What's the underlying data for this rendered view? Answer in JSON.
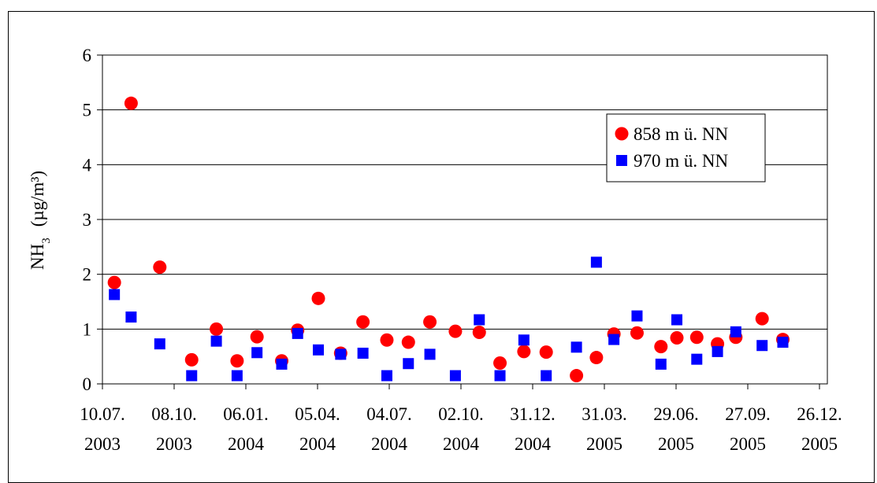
{
  "chart_data": {
    "type": "scatter",
    "title": "",
    "xlabel": "",
    "ylabel": {
      "main": "NH",
      "sub": "3",
      "unit": "(µg/m³)"
    },
    "ylim": [
      0,
      6
    ],
    "yticks": [
      "0",
      "1",
      "2",
      "3",
      "4",
      "5",
      "6"
    ],
    "xlim": [
      "2003-07-10",
      "2005-12-26"
    ],
    "xticks": [
      {
        "date": "2003-07-10",
        "line1": "10.07.",
        "line2": "2003"
      },
      {
        "date": "2003-10-08",
        "line1": "08.10.",
        "line2": "2003"
      },
      {
        "date": "2004-01-06",
        "line1": "06.01.",
        "line2": "2004"
      },
      {
        "date": "2004-04-05",
        "line1": "05.04.",
        "line2": "2004"
      },
      {
        "date": "2004-07-04",
        "line1": "04.07.",
        "line2": "2004"
      },
      {
        "date": "2004-10-02",
        "line1": "02.10.",
        "line2": "2004"
      },
      {
        "date": "2004-12-31",
        "line1": "31.12.",
        "line2": "2004"
      },
      {
        "date": "2005-03-31",
        "line1": "31.03.",
        "line2": "2005"
      },
      {
        "date": "2005-06-29",
        "line1": "29.06.",
        "line2": "2005"
      },
      {
        "date": "2005-09-27",
        "line1": "27.09.",
        "line2": "2005"
      },
      {
        "date": "2005-12-26",
        "line1": "26.12.",
        "line2": "2005"
      }
    ],
    "grid": "horizontal",
    "legend_position": "top-right",
    "series": [
      {
        "name": "858 m ü. NN",
        "marker": "circle",
        "color": "#ff0000",
        "points": [
          {
            "x": "2003-07-25",
            "y": 1.85
          },
          {
            "x": "2003-08-15",
            "y": 5.12
          },
          {
            "x": "2003-09-20",
            "y": 2.13
          },
          {
            "x": "2003-10-30",
            "y": 0.44
          },
          {
            "x": "2003-11-30",
            "y": 1.0
          },
          {
            "x": "2003-12-26",
            "y": 0.42
          },
          {
            "x": "2004-01-20",
            "y": 0.86
          },
          {
            "x": "2004-02-20",
            "y": 0.42
          },
          {
            "x": "2004-03-11",
            "y": 0.98
          },
          {
            "x": "2004-04-06",
            "y": 1.56
          },
          {
            "x": "2004-05-04",
            "y": 0.56
          },
          {
            "x": "2004-06-01",
            "y": 1.13
          },
          {
            "x": "2004-07-01",
            "y": 0.8
          },
          {
            "x": "2004-07-28",
            "y": 0.76
          },
          {
            "x": "2004-08-24",
            "y": 1.13
          },
          {
            "x": "2004-09-25",
            "y": 0.96
          },
          {
            "x": "2004-10-25",
            "y": 0.94
          },
          {
            "x": "2004-11-20",
            "y": 0.38
          },
          {
            "x": "2004-12-20",
            "y": 0.59
          },
          {
            "x": "2005-01-17",
            "y": 0.58
          },
          {
            "x": "2005-02-24",
            "y": 0.15
          },
          {
            "x": "2005-03-21",
            "y": 0.48
          },
          {
            "x": "2005-04-12",
            "y": 0.91
          },
          {
            "x": "2005-05-11",
            "y": 0.93
          },
          {
            "x": "2005-06-10",
            "y": 0.68
          },
          {
            "x": "2005-06-30",
            "y": 0.84
          },
          {
            "x": "2005-07-25",
            "y": 0.85
          },
          {
            "x": "2005-08-20",
            "y": 0.73
          },
          {
            "x": "2005-09-12",
            "y": 0.85
          },
          {
            "x": "2005-10-15",
            "y": 1.19
          },
          {
            "x": "2005-11-10",
            "y": 0.81
          }
        ]
      },
      {
        "name": "970 m ü. NN",
        "marker": "square",
        "color": "#0000ff",
        "points": [
          {
            "x": "2003-07-25",
            "y": 1.63
          },
          {
            "x": "2003-08-15",
            "y": 1.22
          },
          {
            "x": "2003-09-20",
            "y": 0.73
          },
          {
            "x": "2003-10-30",
            "y": 0.15
          },
          {
            "x": "2003-11-30",
            "y": 0.78
          },
          {
            "x": "2003-12-26",
            "y": 0.15
          },
          {
            "x": "2004-01-20",
            "y": 0.57
          },
          {
            "x": "2004-02-20",
            "y": 0.36
          },
          {
            "x": "2004-03-11",
            "y": 0.92
          },
          {
            "x": "2004-04-06",
            "y": 0.62
          },
          {
            "x": "2004-05-04",
            "y": 0.54
          },
          {
            "x": "2004-06-01",
            "y": 0.56
          },
          {
            "x": "2004-07-01",
            "y": 0.15
          },
          {
            "x": "2004-07-28",
            "y": 0.37
          },
          {
            "x": "2004-08-24",
            "y": 0.54
          },
          {
            "x": "2004-09-25",
            "y": 0.15
          },
          {
            "x": "2004-10-25",
            "y": 1.17
          },
          {
            "x": "2004-11-20",
            "y": 0.15
          },
          {
            "x": "2004-12-20",
            "y": 0.8
          },
          {
            "x": "2005-01-17",
            "y": 0.15
          },
          {
            "x": "2005-02-24",
            "y": 0.67
          },
          {
            "x": "2005-03-21",
            "y": 2.22
          },
          {
            "x": "2005-04-12",
            "y": 0.81
          },
          {
            "x": "2005-05-11",
            "y": 1.24
          },
          {
            "x": "2005-06-10",
            "y": 0.36
          },
          {
            "x": "2005-06-30",
            "y": 1.17
          },
          {
            "x": "2005-07-25",
            "y": 0.45
          },
          {
            "x": "2005-08-20",
            "y": 0.59
          },
          {
            "x": "2005-09-12",
            "y": 0.95
          },
          {
            "x": "2005-10-15",
            "y": 0.7
          },
          {
            "x": "2005-11-10",
            "y": 0.76
          }
        ]
      }
    ]
  }
}
